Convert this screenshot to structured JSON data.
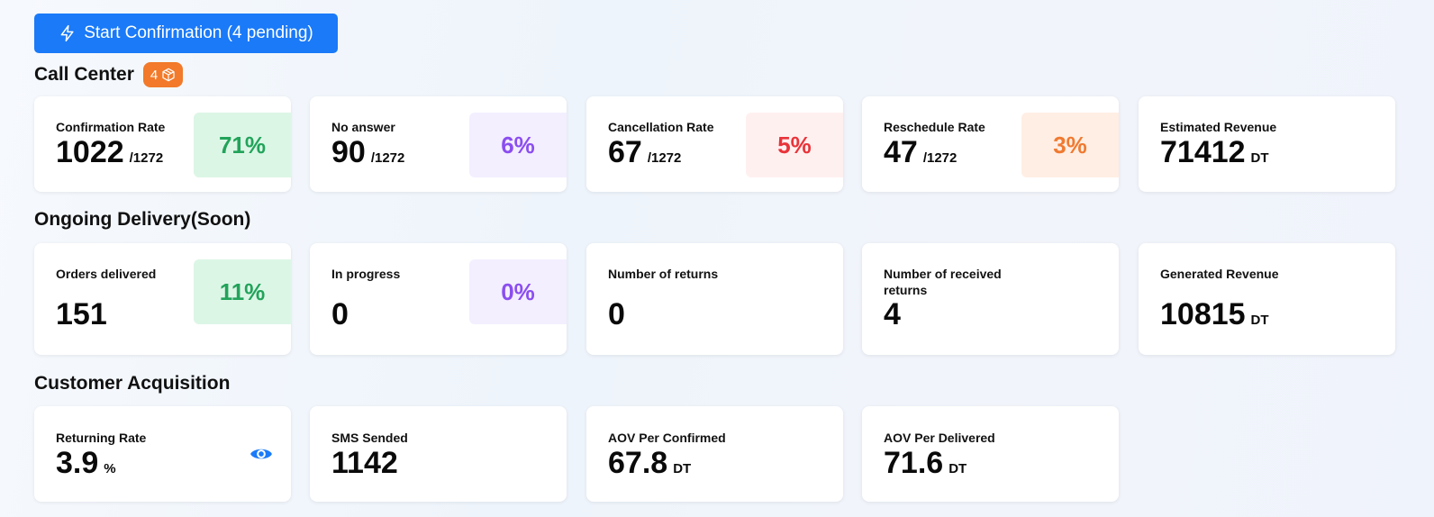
{
  "start_button": {
    "label": "Start Confirmation (4 pending)"
  },
  "call_center": {
    "title": "Call Center",
    "badge": "4",
    "cards": [
      {
        "label": "Confirmation Rate",
        "value": "1022",
        "suffix": "/1272",
        "pct": "71%",
        "pct_color": "#22a35a",
        "pct_bg": "#dcf6e6"
      },
      {
        "label": "No answer",
        "value": "90",
        "suffix": "/1272",
        "pct": "6%",
        "pct_color": "#8b4ef0",
        "pct_bg": "#f3efff"
      },
      {
        "label": "Cancellation Rate",
        "value": "67",
        "suffix": "/1272",
        "pct": "5%",
        "pct_color": "#e8343a",
        "pct_bg": "#fff0f0"
      },
      {
        "label": "Reschedule Rate",
        "value": "47",
        "suffix": "/1272",
        "pct": "3%",
        "pct_color": "#f07a30",
        "pct_bg": "#ffeee4"
      },
      {
        "label": "Estimated Revenue",
        "value": "71412",
        "suffix": "DT"
      }
    ]
  },
  "ongoing_delivery": {
    "title": "Ongoing Delivery(Soon)",
    "cards": [
      {
        "label": "Orders delivered",
        "value": "151",
        "pct": "11%",
        "pct_color": "#22a35a",
        "pct_bg": "#dcf6e6"
      },
      {
        "label": "In progress",
        "value": "0",
        "pct": "0%",
        "pct_color": "#8b4ef0",
        "pct_bg": "#f3efff"
      },
      {
        "label": "Number of returns",
        "value": "0"
      },
      {
        "label": "Number of received returns",
        "value": "4"
      },
      {
        "label": "Generated Revenue",
        "value": "10815",
        "suffix": "DT"
      }
    ]
  },
  "customer_acquisition": {
    "title": "Customer Acquisition",
    "cards": [
      {
        "label": "Returning Rate",
        "value": "3.9",
        "suffix": "%",
        "icon": "eye-icon",
        "icon_color": "#1a7af8"
      },
      {
        "label": "SMS Sended",
        "value": "1142"
      },
      {
        "label": "AOV Per Confirmed",
        "value": "67.8",
        "suffix": "DT"
      },
      {
        "label": "AOV Per Delivered",
        "value": "71.6",
        "suffix": "DT"
      }
    ]
  }
}
